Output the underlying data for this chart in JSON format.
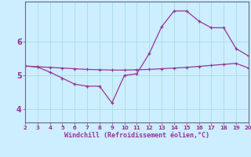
{
  "xlabel": "Windchill (Refroidissement éolien,°C)",
  "bg_color": "#cceeff",
  "grid_color": "#aadddd",
  "line_color": "#993399",
  "x_ticks": [
    2,
    3,
    4,
    5,
    6,
    7,
    8,
    9,
    10,
    11,
    12,
    13,
    14,
    15,
    16,
    17,
    18,
    19,
    20
  ],
  "y_ticks": [
    4,
    5,
    6
  ],
  "xlim": [
    2,
    20
  ],
  "ylim": [
    3.6,
    7.2
  ],
  "line1_x": [
    2,
    3,
    4,
    5,
    6,
    7,
    8,
    9,
    10,
    11,
    12,
    13,
    14,
    15,
    16,
    17,
    18,
    19,
    20
  ],
  "line1_y": [
    5.28,
    5.25,
    5.1,
    4.92,
    4.74,
    4.68,
    4.68,
    4.18,
    5.0,
    5.05,
    5.65,
    6.45,
    6.92,
    6.92,
    6.62,
    6.42,
    6.42,
    5.8,
    5.58
  ],
  "line2_x": [
    2,
    3,
    4,
    5,
    6,
    7,
    8,
    9,
    10,
    11,
    12,
    13,
    14,
    15,
    16,
    17,
    18,
    19,
    20
  ],
  "line2_y": [
    5.28,
    5.26,
    5.24,
    5.22,
    5.2,
    5.18,
    5.17,
    5.16,
    5.16,
    5.17,
    5.18,
    5.2,
    5.22,
    5.24,
    5.27,
    5.3,
    5.33,
    5.36,
    5.22
  ]
}
